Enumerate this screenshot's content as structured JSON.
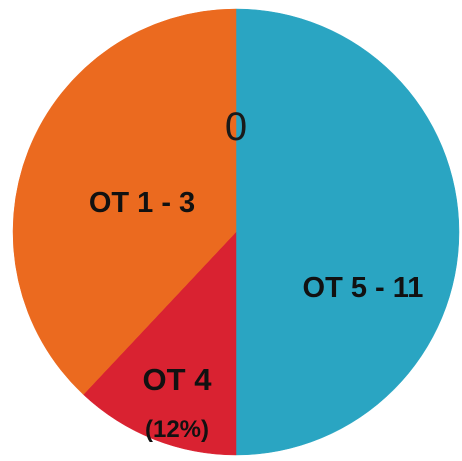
{
  "chart_data": {
    "type": "pie",
    "center_text": "0",
    "slices": [
      {
        "label": "OT 5 - 11",
        "sublabel": "",
        "value": 50,
        "color": "#2aa5c2"
      },
      {
        "label": "OT 4",
        "sublabel": "(12%)",
        "value": 12,
        "color": "#d92231"
      },
      {
        "label": "OT 1 - 3",
        "sublabel": "",
        "value": 38,
        "color": "#eb6a1f"
      }
    ],
    "start": "top",
    "direction": "clockwise"
  }
}
